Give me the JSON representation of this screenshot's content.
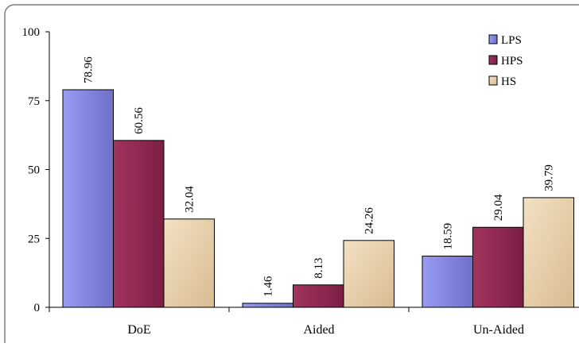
{
  "chart_data": {
    "type": "bar",
    "categories": [
      "DoE",
      "Aided",
      "Un-Aided"
    ],
    "series": [
      {
        "name": "LPS",
        "values": [
          78.96,
          1.46,
          18.59
        ],
        "label_text": [
          "78.96",
          "1.46",
          "18.59"
        ]
      },
      {
        "name": "HPS",
        "values": [
          60.56,
          8.13,
          29.04
        ],
        "label_text": [
          "60.56",
          "8.13",
          "29.04"
        ]
      },
      {
        "name": "HS",
        "values": [
          32.04,
          24.26,
          39.79
        ],
        "label_text": [
          "32.04",
          "24.26",
          "39.79"
        ]
      }
    ],
    "ylim": [
      0,
      100
    ],
    "yticks": [
      "0",
      "25",
      "50",
      "75",
      "100"
    ],
    "grid": false,
    "legend_position": "top-right",
    "colors": {
      "LPS": [
        "#9a9cf2",
        "#6e70c9"
      ],
      "HPS": [
        "#a3335f",
        "#7b1f45"
      ],
      "HS": [
        "#f3e1c3",
        "#d8bc91"
      ],
      "axis": "#000000",
      "border": "#7f7f7f"
    }
  }
}
